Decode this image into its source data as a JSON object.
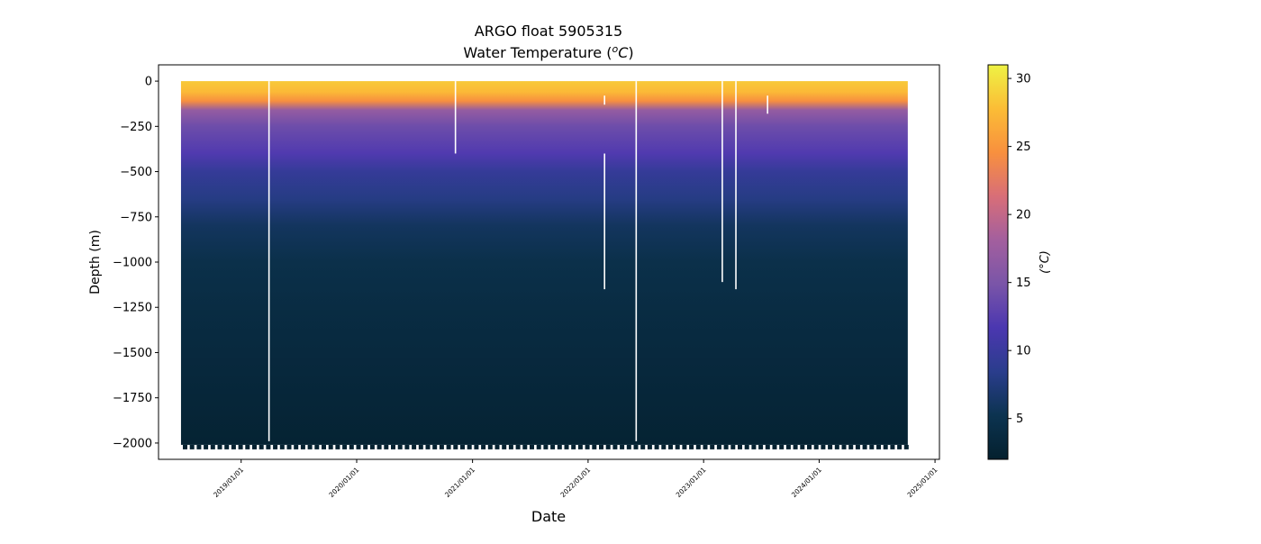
{
  "chart_data": {
    "type": "heatmap",
    "title": "ARGO float 5905315",
    "subtitle_prefix": "Water Temperature (",
    "subtitle_unit_base": "C",
    "subtitle_unit_sup": "o",
    "subtitle_suffix": ")",
    "xlabel": "Date",
    "ylabel": "Depth (m)",
    "colorbar_label": "(°C)",
    "colormap": "thermal",
    "colormap_stops": [
      "#04202e",
      "#0c3350",
      "#2a3d8c",
      "#4b37b0",
      "#7a55a8",
      "#a35f9e",
      "#d86e78",
      "#f8903e",
      "#fbbd36",
      "#eef244"
    ],
    "x_range": [
      "2018-06-25",
      "2024-10-07"
    ],
    "xlim": [
      "2018-04-15",
      "2025-01-15"
    ],
    "ylim": [
      -2090,
      90
    ],
    "clim": [
      2,
      31
    ],
    "x_ticks": [
      {
        "date": "2019-01-01",
        "label": "2019/01/01"
      },
      {
        "date": "2020-01-01",
        "label": "2020/01/01"
      },
      {
        "date": "2021-01-01",
        "label": "2021/01/01"
      },
      {
        "date": "2022-01-01",
        "label": "2022/01/01"
      },
      {
        "date": "2023-01-01",
        "label": "2023/01/01"
      },
      {
        "date": "2024-01-01",
        "label": "2024/01/01"
      },
      {
        "date": "2025-01-01",
        "label": "2025/01/01"
      }
    ],
    "y_ticks": [
      {
        "value": 0,
        "label": "0"
      },
      {
        "value": -250,
        "label": "−250"
      },
      {
        "value": -500,
        "label": "−500"
      },
      {
        "value": -750,
        "label": "−750"
      },
      {
        "value": -1000,
        "label": "−1000"
      },
      {
        "value": -1250,
        "label": "−1250"
      },
      {
        "value": -1500,
        "label": "−1500"
      },
      {
        "value": -1750,
        "label": "−1750"
      },
      {
        "value": -2000,
        "label": "−2000"
      }
    ],
    "colorbar_ticks": [
      {
        "value": 5,
        "label": "5"
      },
      {
        "value": 10,
        "label": "10"
      },
      {
        "value": 15,
        "label": "15"
      },
      {
        "value": 20,
        "label": "20"
      },
      {
        "value": 25,
        "label": "25"
      },
      {
        "value": 30,
        "label": "30"
      }
    ],
    "temperature_profile": [
      {
        "depth": 0,
        "temp": 28.5
      },
      {
        "depth": -60,
        "temp": 27.5
      },
      {
        "depth": -110,
        "temp": 24.5
      },
      {
        "depth": -160,
        "temp": 17
      },
      {
        "depth": -250,
        "temp": 14
      },
      {
        "depth": -400,
        "temp": 12
      },
      {
        "depth": -500,
        "temp": 9.5
      },
      {
        "depth": -650,
        "temp": 8
      },
      {
        "depth": -800,
        "temp": 6
      },
      {
        "depth": -1000,
        "temp": 4.7
      },
      {
        "depth": -1250,
        "temp": 4
      },
      {
        "depth": -1500,
        "temp": 3.5
      },
      {
        "depth": -1750,
        "temp": 3
      },
      {
        "depth": -2000,
        "temp": 2.5
      }
    ],
    "data_gaps": [
      {
        "date": "2019-03-30",
        "depth_top": 0,
        "depth_bottom": -1990
      },
      {
        "date": "2020-11-08",
        "depth_top": 0,
        "depth_bottom": -400
      },
      {
        "date": "2022-02-22",
        "depth_top": -80,
        "depth_bottom": -130
      },
      {
        "date": "2022-02-22",
        "depth_top": -400,
        "depth_bottom": -1150
      },
      {
        "date": "2022-06-02",
        "depth_top": 0,
        "depth_bottom": -1990
      },
      {
        "date": "2023-03-01",
        "depth_top": 0,
        "depth_bottom": -1110
      },
      {
        "date": "2023-04-13",
        "depth_top": 0,
        "depth_bottom": -1150
      },
      {
        "date": "2023-07-22",
        "depth_top": -80,
        "depth_bottom": -180
      }
    ]
  }
}
